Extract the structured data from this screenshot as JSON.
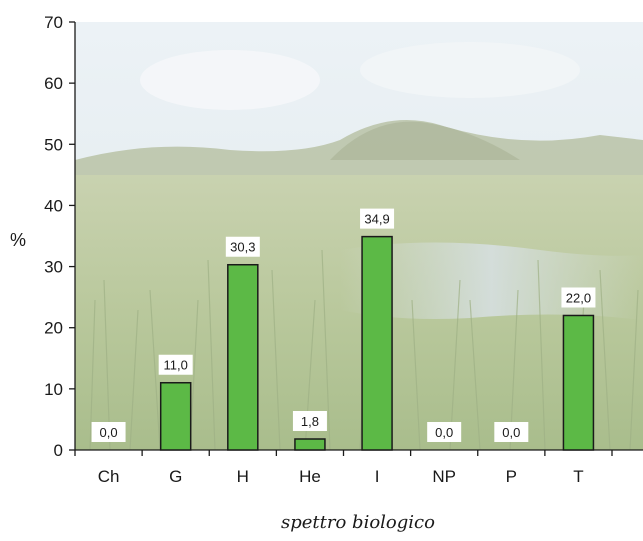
{
  "chart_data": {
    "type": "bar",
    "title": "",
    "xlabel": "spettro biologico",
    "ylabel": "%",
    "ylim": [
      0,
      70
    ],
    "yticks": [
      0,
      10,
      20,
      30,
      40,
      50,
      60,
      70
    ],
    "grid": false,
    "categories": [
      "Ch",
      "G",
      "H",
      "He",
      "I",
      "NP",
      "P",
      "T"
    ],
    "values": [
      0.0,
      11.0,
      30.3,
      1.8,
      34.9,
      0.0,
      0.0,
      22.0
    ],
    "data_labels": [
      "0,0",
      "11,0",
      "30,3",
      "1,8",
      "34,9",
      "0,0",
      "0,0",
      "22,0"
    ],
    "bar_color": "#5cb946",
    "bar_edge_color": "#1a1a1a",
    "background": "photograph of a grassy wetland landscape with hills and a faded sky"
  }
}
